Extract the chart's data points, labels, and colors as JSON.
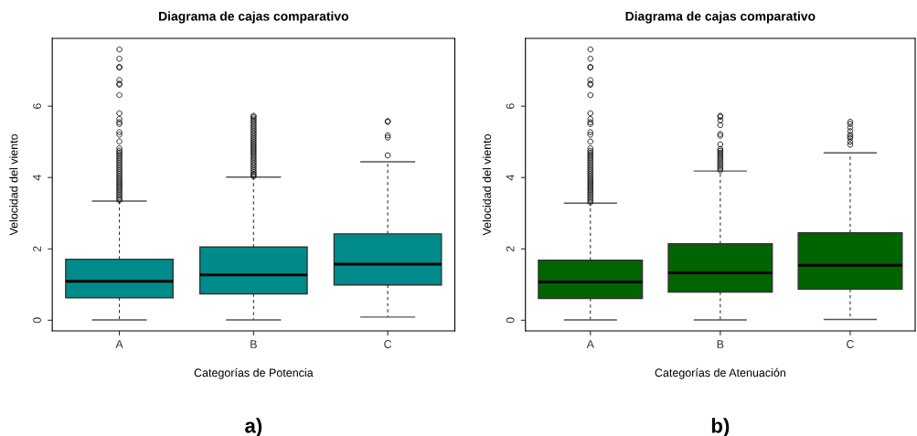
{
  "chart_data": [
    {
      "type": "box",
      "title": "Diagrama de cajas comparativo",
      "xlabel": "Categorías de Potencia",
      "ylabel": "Velocidad del viento",
      "categories": [
        "A",
        "B",
        "C"
      ],
      "color": "#008b8b",
      "ylim": [
        -0.3,
        7.9
      ],
      "yticks": [
        0,
        2,
        4,
        6
      ],
      "grid": false,
      "annotations": [
        "a)"
      ],
      "boxes": [
        {
          "low": 0.01,
          "q1": 0.63,
          "median": 1.09,
          "q3": 1.71,
          "high": 3.34,
          "outliers": [
            3.36,
            3.4,
            3.45,
            3.5,
            3.55,
            3.6,
            3.65,
            3.7,
            3.75,
            3.8,
            3.85,
            3.9,
            3.95,
            4.0,
            4.05,
            4.1,
            4.15,
            4.2,
            4.25,
            4.3,
            4.35,
            4.4,
            4.45,
            4.5,
            4.55,
            4.6,
            4.65,
            4.7,
            4.75,
            4.82,
            5.01,
            5.2,
            5.27,
            5.5,
            5.55,
            5.64,
            5.8,
            6.31,
            6.6,
            6.63,
            6.73,
            7.08,
            7.1,
            7.33,
            7.59
          ]
        },
        {
          "low": 0.01,
          "q1": 0.74,
          "median": 1.27,
          "q3": 2.05,
          "high": 4.01,
          "outliers": [
            4.03,
            4.07,
            4.1,
            4.15,
            4.2,
            4.25,
            4.3,
            4.35,
            4.4,
            4.45,
            4.5,
            4.55,
            4.6,
            4.65,
            4.7,
            4.75,
            4.8,
            4.85,
            4.9,
            4.95,
            5.0,
            5.05,
            5.1,
            5.15,
            5.2,
            5.25,
            5.3,
            5.35,
            5.4,
            5.45,
            5.5,
            5.55,
            5.6,
            5.65,
            5.7,
            5.73
          ]
        },
        {
          "low": 0.09,
          "q1": 0.99,
          "median": 1.57,
          "q3": 2.42,
          "high": 4.44,
          "outliers": [
            4.62,
            5.12,
            5.18,
            5.56,
            5.58
          ]
        }
      ]
    },
    {
      "type": "box",
      "title": "Diagrama de cajas comparativo",
      "xlabel": "Categorías de Atenuación",
      "ylabel": "Velocidad del viento",
      "categories": [
        "A",
        "B",
        "C"
      ],
      "color": "#006400",
      "ylim": [
        -0.3,
        7.9
      ],
      "yticks": [
        0,
        2,
        4,
        6
      ],
      "grid": false,
      "annotations": [
        "b)"
      ],
      "boxes": [
        {
          "low": 0.01,
          "q1": 0.61,
          "median": 1.07,
          "q3": 1.68,
          "high": 3.28,
          "outliers": [
            3.3,
            3.35,
            3.4,
            3.45,
            3.5,
            3.55,
            3.6,
            3.65,
            3.7,
            3.75,
            3.8,
            3.85,
            3.9,
            3.95,
            4.0,
            4.05,
            4.1,
            4.15,
            4.2,
            4.25,
            4.3,
            4.35,
            4.4,
            4.45,
            4.5,
            4.55,
            4.6,
            4.65,
            4.7,
            4.75,
            4.82,
            5.01,
            5.2,
            5.27,
            5.5,
            5.55,
            5.64,
            5.8,
            6.31,
            6.6,
            6.63,
            6.73,
            7.08,
            7.1,
            7.33,
            7.59
          ]
        },
        {
          "low": 0.01,
          "q1": 0.79,
          "median": 1.33,
          "q3": 2.14,
          "high": 4.18,
          "outliers": [
            4.2,
            4.25,
            4.3,
            4.35,
            4.4,
            4.45,
            4.5,
            4.55,
            4.6,
            4.65,
            4.7,
            4.75,
            4.8,
            4.93,
            5.17,
            5.22,
            5.47,
            5.6,
            5.7,
            5.73
          ]
        },
        {
          "low": 0.02,
          "q1": 0.87,
          "median": 1.54,
          "q3": 2.45,
          "high": 4.69,
          "outliers": [
            4.92,
            5.0,
            5.1,
            5.15,
            5.2,
            5.3,
            5.4,
            5.5,
            5.56
          ]
        }
      ]
    }
  ]
}
